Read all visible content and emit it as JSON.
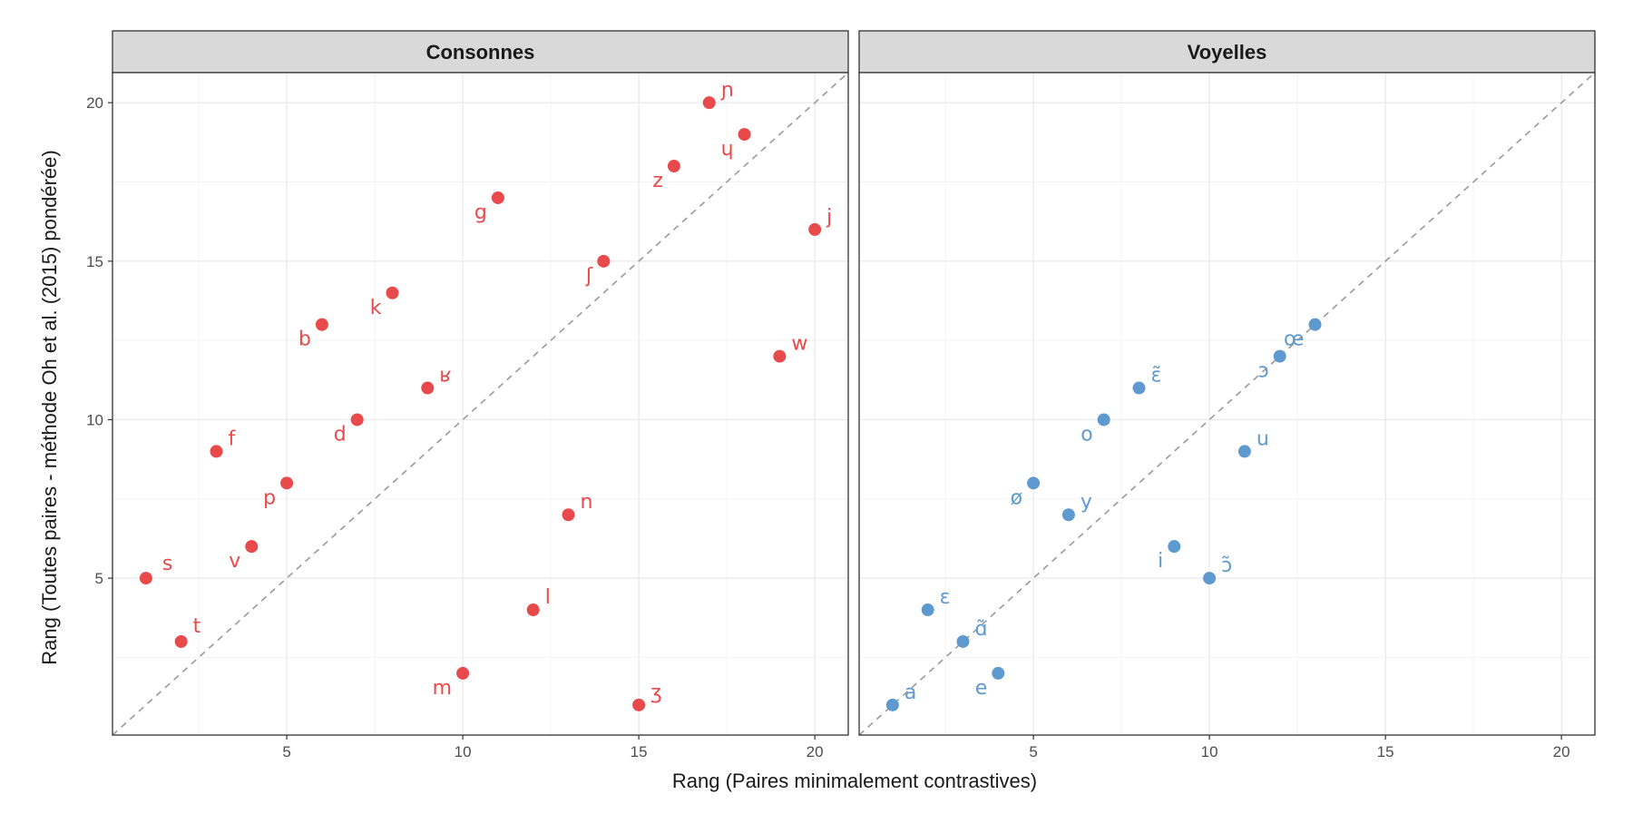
{
  "colors": {
    "consonnes": "#E8494B",
    "voyelles": "#5E9AD0",
    "strip_bg": "#d9d9d9",
    "grid": "#ebebeb",
    "diag": "#999999"
  },
  "axes": {
    "xlabel": "Rang (Paires minimalement contrastives)",
    "ylabel": "Rang (Toutes paires - méthode Oh et al. (2015) pondérée)"
  },
  "chart_data": {
    "type": "scatter",
    "xlabel": "Rang (Paires minimalement contrastives)",
    "ylabel": "Rang (Toutes paires - méthode Oh et al. (2015) pondérée)",
    "xlim": [
      0.05,
      20.95
    ],
    "ylim": [
      0.05,
      20.95
    ],
    "x_ticks": [
      5,
      10,
      15,
      20
    ],
    "y_ticks": [
      5,
      10,
      15,
      20
    ],
    "reference_line": "y = x (dashed)",
    "grid": true,
    "facets": [
      {
        "title": "Consonnes",
        "color": "#E8494B",
        "points": [
          {
            "label": "s",
            "x": 1,
            "y": 5
          },
          {
            "label": "t",
            "x": 2,
            "y": 3
          },
          {
            "label": "f",
            "x": 3,
            "y": 9
          },
          {
            "label": "v",
            "x": 4,
            "y": 6
          },
          {
            "label": "p",
            "x": 5,
            "y": 8
          },
          {
            "label": "b",
            "x": 6,
            "y": 13
          },
          {
            "label": "d",
            "x": 7,
            "y": 10
          },
          {
            "label": "k",
            "x": 8,
            "y": 14
          },
          {
            "label": "ʁ",
            "x": 9,
            "y": 11
          },
          {
            "label": "m",
            "x": 10,
            "y": 2
          },
          {
            "label": "g",
            "x": 11,
            "y": 17
          },
          {
            "label": "l",
            "x": 12,
            "y": 4
          },
          {
            "label": "n",
            "x": 13,
            "y": 7
          },
          {
            "label": "ʃ",
            "x": 14,
            "y": 15
          },
          {
            "label": "ʒ",
            "x": 15,
            "y": 1
          },
          {
            "label": "z",
            "x": 16,
            "y": 18
          },
          {
            "label": "ɲ",
            "x": 17,
            "y": 20
          },
          {
            "label": "ɥ",
            "x": 18,
            "y": 19
          },
          {
            "label": "w",
            "x": 19,
            "y": 12
          },
          {
            "label": "j",
            "x": 20,
            "y": 16
          }
        ]
      },
      {
        "title": "Voyelles",
        "color": "#5E9AD0",
        "points": [
          {
            "label": "a",
            "x": 1,
            "y": 1
          },
          {
            "label": "ɛ",
            "x": 2,
            "y": 4
          },
          {
            "label": "ɑ̃",
            "x": 3,
            "y": 3
          },
          {
            "label": "e",
            "x": 4,
            "y": 2
          },
          {
            "label": "ø",
            "x": 5,
            "y": 8
          },
          {
            "label": "y",
            "x": 6,
            "y": 7
          },
          {
            "label": "o",
            "x": 7,
            "y": 10
          },
          {
            "label": "ɛ̃",
            "x": 8,
            "y": 11
          },
          {
            "label": "i",
            "x": 9,
            "y": 6
          },
          {
            "label": "ɔ̃",
            "x": 10,
            "y": 5
          },
          {
            "label": "u",
            "x": 11,
            "y": 9
          },
          {
            "label": "ɔ",
            "x": 12,
            "y": 12
          },
          {
            "label": "œ",
            "x": 13,
            "y": 13
          }
        ]
      }
    ]
  }
}
